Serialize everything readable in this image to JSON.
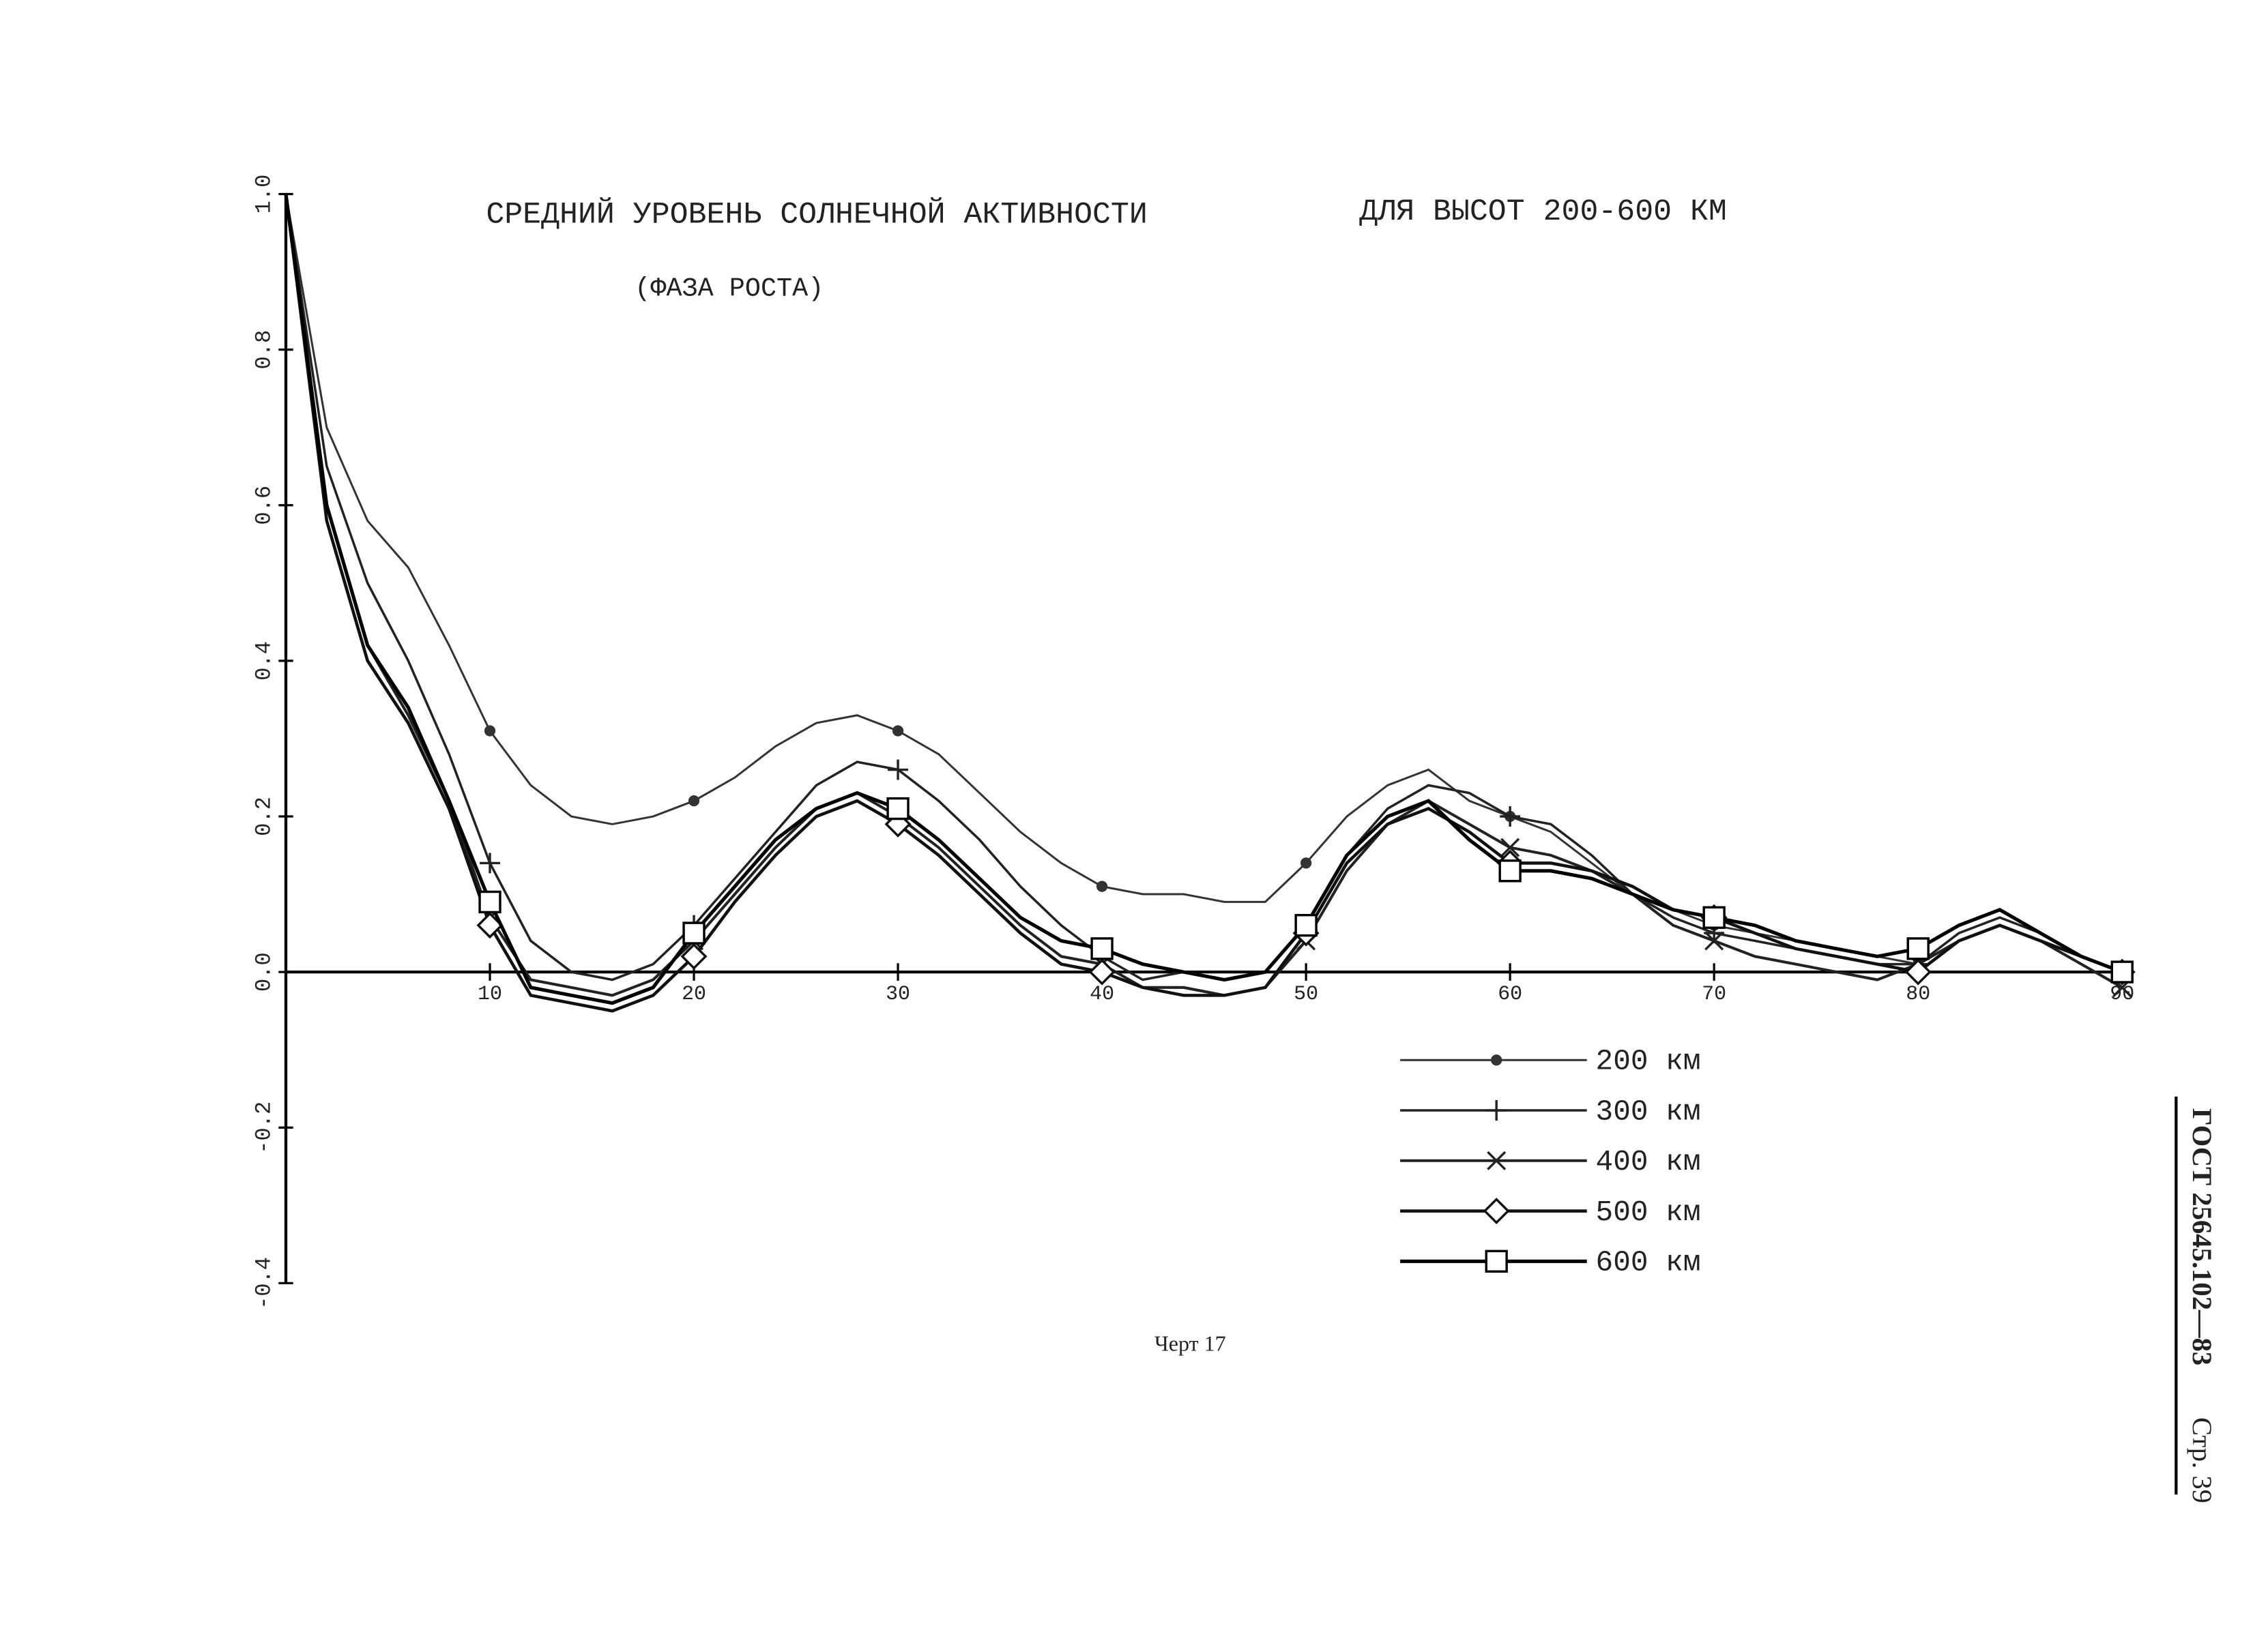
{
  "chart_data": {
    "type": "line",
    "title": "СРЕДНИЙ УРОВЕНЬ СОЛНЕЧНОЙ АКТИВНОСТИ",
    "title_right": "ДЛЯ ВЫСОТ 200-600 КМ",
    "subtitle": "(ФАЗА РОСТА)",
    "x": [
      0,
      2,
      4,
      6,
      8,
      10,
      12,
      14,
      16,
      18,
      20,
      22,
      24,
      26,
      28,
      30,
      32,
      34,
      36,
      38,
      40,
      42,
      44,
      46,
      48,
      50,
      52,
      54,
      56,
      58,
      60,
      62,
      64,
      66,
      68,
      70,
      72,
      74,
      76,
      78,
      80,
      82,
      84,
      86,
      88,
      90
    ],
    "series": [
      {
        "name": "200 км",
        "color": "#333333",
        "marker": "dot",
        "values": [
          1.0,
          0.7,
          0.58,
          0.52,
          0.42,
          0.31,
          0.24,
          0.2,
          0.19,
          0.2,
          0.22,
          0.25,
          0.29,
          0.32,
          0.33,
          0.31,
          0.28,
          0.23,
          0.18,
          0.14,
          0.11,
          0.1,
          0.1,
          0.09,
          0.09,
          0.14,
          0.2,
          0.24,
          0.26,
          0.22,
          0.2,
          0.18,
          0.14,
          0.1,
          0.08,
          0.06,
          0.05,
          0.04,
          0.03,
          0.02,
          0.01,
          0.05,
          0.07,
          0.05,
          0.02,
          0.0
        ]
      },
      {
        "name": "300 км",
        "color": "#222222",
        "marker": "plus",
        "values": [
          1.0,
          0.65,
          0.5,
          0.4,
          0.28,
          0.14,
          0.04,
          0.0,
          -0.01,
          0.01,
          0.06,
          0.12,
          0.18,
          0.24,
          0.27,
          0.26,
          0.22,
          0.17,
          0.11,
          0.06,
          0.02,
          -0.01,
          0.0,
          -0.01,
          0.0,
          0.06,
          0.15,
          0.21,
          0.24,
          0.23,
          0.2,
          0.19,
          0.15,
          0.1,
          0.07,
          0.05,
          0.04,
          0.03,
          0.02,
          0.01,
          0.01,
          0.05,
          0.07,
          0.05,
          0.02,
          0.0
        ]
      },
      {
        "name": "400 км",
        "color": "#222222",
        "marker": "cross",
        "values": [
          1.0,
          0.6,
          0.42,
          0.33,
          0.22,
          0.07,
          -0.01,
          -0.02,
          -0.03,
          -0.01,
          0.04,
          0.1,
          0.16,
          0.21,
          0.23,
          0.2,
          0.16,
          0.11,
          0.06,
          0.02,
          0.01,
          -0.02,
          -0.02,
          -0.03,
          -0.02,
          0.04,
          0.13,
          0.19,
          0.22,
          0.19,
          0.16,
          0.15,
          0.13,
          0.1,
          0.06,
          0.04,
          0.02,
          0.01,
          0.0,
          -0.01,
          0.01,
          0.04,
          0.06,
          0.04,
          0.01,
          -0.02
        ]
      },
      {
        "name": "500 км",
        "color": "#111111",
        "marker": "diamond",
        "values": [
          1.0,
          0.58,
          0.4,
          0.32,
          0.21,
          0.06,
          -0.03,
          -0.04,
          -0.05,
          -0.03,
          0.02,
          0.09,
          0.15,
          0.2,
          0.22,
          0.19,
          0.15,
          0.1,
          0.05,
          0.01,
          0.0,
          -0.02,
          -0.03,
          -0.03,
          -0.02,
          0.05,
          0.14,
          0.19,
          0.21,
          0.18,
          0.14,
          0.14,
          0.13,
          0.11,
          0.08,
          0.07,
          0.05,
          0.03,
          0.02,
          0.01,
          0.0,
          0.04,
          0.06,
          0.04,
          0.02,
          0.0
        ]
      },
      {
        "name": "600 км",
        "color": "#000000",
        "marker": "square",
        "values": [
          1.0,
          0.6,
          0.42,
          0.34,
          0.22,
          0.09,
          -0.02,
          -0.03,
          -0.04,
          -0.02,
          0.05,
          0.11,
          0.17,
          0.21,
          0.23,
          0.21,
          0.17,
          0.12,
          0.07,
          0.04,
          0.03,
          0.01,
          0.0,
          -0.01,
          0.0,
          0.06,
          0.15,
          0.2,
          0.22,
          0.17,
          0.13,
          0.13,
          0.12,
          0.1,
          0.08,
          0.07,
          0.06,
          0.04,
          0.03,
          0.02,
          0.03,
          0.06,
          0.08,
          0.05,
          0.02,
          0.0
        ]
      }
    ],
    "xlim": [
      0,
      90
    ],
    "ylim": [
      -0.4,
      1.0
    ],
    "xticks": [
      10,
      20,
      30,
      40,
      50,
      60,
      70,
      80,
      90
    ],
    "yticks": [
      {
        "value": 1.0,
        "label": "1.0"
      },
      0.8,
      0.6,
      0.4,
      0.2,
      {
        "value": 0.0,
        "label": "0.0"
      },
      -0.2,
      -0.4
    ],
    "legend": "lower-right"
  },
  "caption": "Черт 17",
  "page_header": {
    "document": "ГОСТ 25645.102—83",
    "page": "Стр. 39"
  }
}
